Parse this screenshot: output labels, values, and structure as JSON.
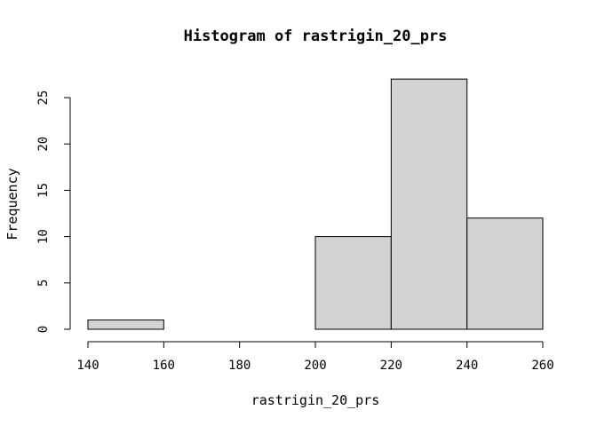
{
  "chart_data": {
    "type": "bar",
    "title": "Histogram of rastrigin_20_prs",
    "xlabel": "rastrigin_20_prs",
    "ylabel": "Frequency",
    "bins": [
      {
        "start": 140,
        "end": 160,
        "count": 1
      },
      {
        "start": 160,
        "end": 180,
        "count": 0
      },
      {
        "start": 180,
        "end": 200,
        "count": 0
      },
      {
        "start": 200,
        "end": 220,
        "count": 10
      },
      {
        "start": 220,
        "end": 240,
        "count": 27
      },
      {
        "start": 240,
        "end": 260,
        "count": 12
      }
    ],
    "xticks": [
      "140",
      "160",
      "180",
      "200",
      "220",
      "240",
      "260"
    ],
    "yticks": [
      "0",
      "5",
      "10",
      "15",
      "20",
      "25"
    ],
    "xlim": [
      140,
      260
    ],
    "ylim": [
      0,
      27
    ],
    "bar_color": "#d3d3d3",
    "edge_color": "#000000",
    "grid": false
  }
}
